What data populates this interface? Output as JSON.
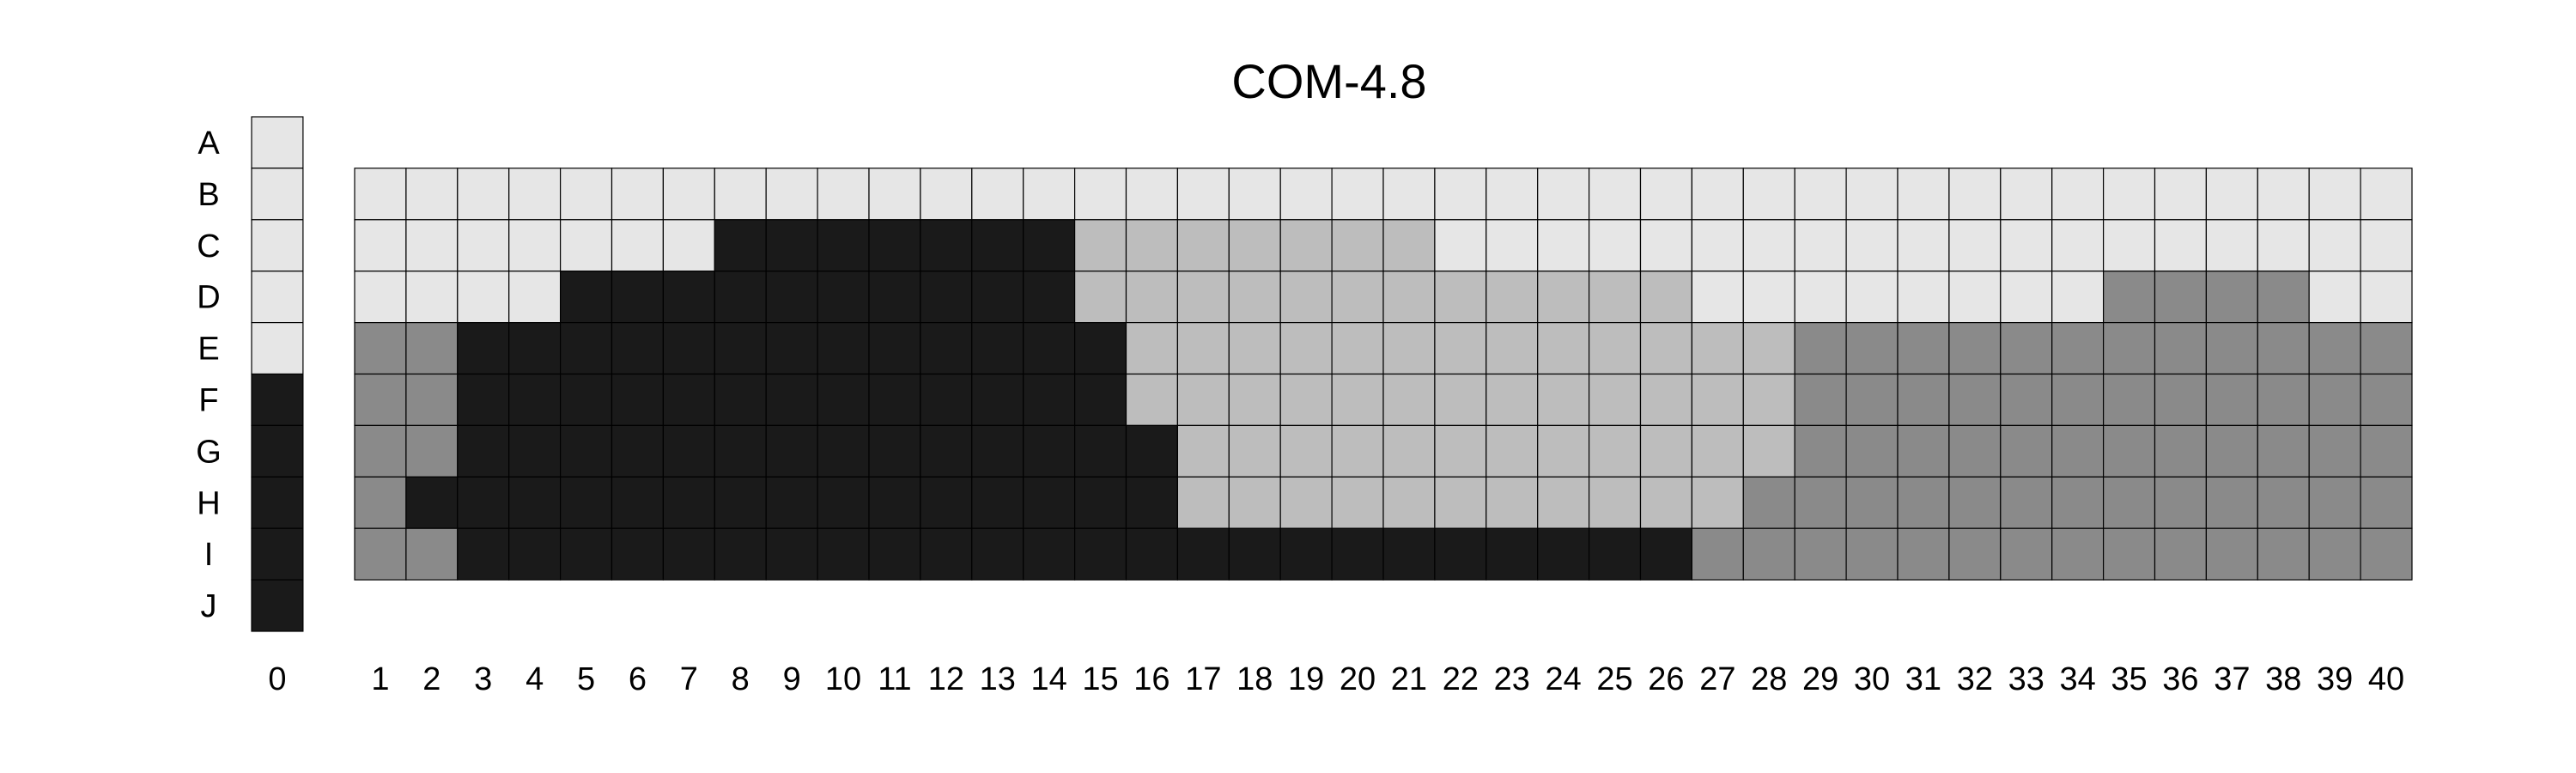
{
  "chart_data": {
    "type": "heatmap",
    "title": "COM-4.8",
    "rows": [
      "A",
      "B",
      "C",
      "D",
      "E",
      "F",
      "G",
      "H",
      "I",
      "J"
    ],
    "reference_column": {
      "label": "0",
      "values": [
        1,
        1,
        1,
        1,
        1,
        4,
        4,
        4,
        4,
        4
      ]
    },
    "columns": [
      "1",
      "2",
      "3",
      "4",
      "5",
      "6",
      "7",
      "8",
      "9",
      "10",
      "11",
      "12",
      "13",
      "14",
      "15",
      "16",
      "17",
      "18",
      "19",
      "20",
      "21",
      "22",
      "23",
      "24",
      "25",
      "26",
      "27",
      "28",
      "29",
      "30",
      "31",
      "32",
      "33",
      "34",
      "35",
      "36",
      "37",
      "38",
      "39",
      "40"
    ],
    "grid_rows": [
      "B",
      "C",
      "D",
      "E",
      "F",
      "G",
      "H",
      "I"
    ],
    "grid": [
      [
        1,
        1,
        1,
        1,
        1,
        1,
        1,
        1,
        1,
        1,
        1,
        1,
        1,
        1,
        1,
        1,
        1,
        1,
        1,
        1,
        1,
        1,
        1,
        1,
        1,
        1,
        1,
        1,
        1,
        1,
        1,
        1,
        1,
        1,
        1,
        1,
        1,
        1,
        1,
        1
      ],
      [
        1,
        1,
        1,
        1,
        1,
        1,
        1,
        4,
        4,
        4,
        4,
        4,
        4,
        4,
        2,
        2,
        2,
        2,
        2,
        2,
        2,
        1,
        1,
        1,
        1,
        1,
        1,
        1,
        1,
        1,
        1,
        1,
        1,
        1,
        1,
        1,
        1,
        1,
        1,
        1
      ],
      [
        1,
        1,
        1,
        1,
        4,
        4,
        4,
        4,
        4,
        4,
        4,
        4,
        4,
        4,
        2,
        2,
        2,
        2,
        2,
        2,
        2,
        2,
        2,
        2,
        2,
        2,
        1,
        1,
        1,
        1,
        1,
        1,
        1,
        1,
        3,
        3,
        3,
        3,
        1,
        1
      ],
      [
        3,
        3,
        4,
        4,
        4,
        4,
        4,
        4,
        4,
        4,
        4,
        4,
        4,
        4,
        4,
        2,
        2,
        2,
        2,
        2,
        2,
        2,
        2,
        2,
        2,
        2,
        2,
        2,
        3,
        3,
        3,
        3,
        3,
        3,
        3,
        3,
        3,
        3,
        3,
        3
      ],
      [
        3,
        3,
        4,
        4,
        4,
        4,
        4,
        4,
        4,
        4,
        4,
        4,
        4,
        4,
        4,
        2,
        2,
        2,
        2,
        2,
        2,
        2,
        2,
        2,
        2,
        2,
        2,
        2,
        3,
        3,
        3,
        3,
        3,
        3,
        3,
        3,
        3,
        3,
        3,
        3
      ],
      [
        3,
        3,
        4,
        4,
        4,
        4,
        4,
        4,
        4,
        4,
        4,
        4,
        4,
        4,
        4,
        4,
        2,
        2,
        2,
        2,
        2,
        2,
        2,
        2,
        2,
        2,
        2,
        2,
        3,
        3,
        3,
        3,
        3,
        3,
        3,
        3,
        3,
        3,
        3,
        3
      ],
      [
        3,
        4,
        4,
        4,
        4,
        4,
        4,
        4,
        4,
        4,
        4,
        4,
        4,
        4,
        4,
        4,
        2,
        2,
        2,
        2,
        2,
        2,
        2,
        2,
        2,
        2,
        2,
        3,
        3,
        3,
        3,
        3,
        3,
        3,
        3,
        3,
        3,
        3,
        3,
        3
      ],
      [
        3,
        3,
        4,
        4,
        4,
        4,
        4,
        4,
        4,
        4,
        4,
        4,
        4,
        4,
        4,
        4,
        4,
        4,
        4,
        4,
        4,
        4,
        4,
        4,
        4,
        4,
        3,
        3,
        3,
        3,
        3,
        3,
        3,
        3,
        3,
        3,
        3,
        3,
        3,
        3
      ]
    ],
    "palette": {
      "1": "#e6e6e6",
      "2": "#bdbdbd",
      "3": "#8a8a8a",
      "4": "#1a1a1a"
    },
    "grid_lines": true,
    "legend": "none"
  }
}
